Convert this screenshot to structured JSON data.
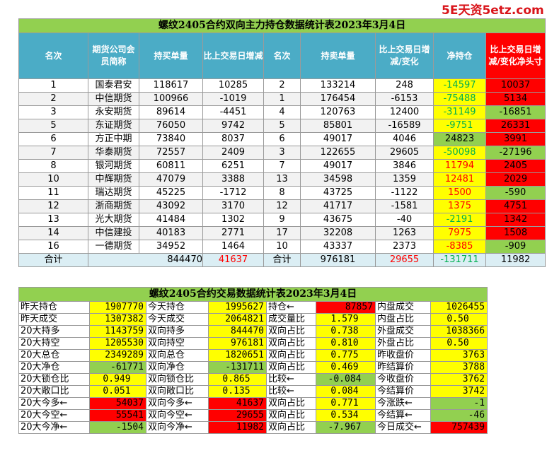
{
  "watermark": "5E天资5etz.com",
  "main_table": {
    "title": "螺纹2405合约双向主力持仓数据统计表2023年3月4日",
    "headers": [
      "名次",
      "期货公司会员简称",
      "持买单量",
      "比上交易日增减",
      "名次",
      "持卖单量",
      "比上交易日增减/变化",
      "净持仓",
      "比上交易日增减/变化净头寸"
    ],
    "rows": [
      {
        "rank": "1",
        "company": "国泰君安",
        "buy": "118617",
        "buy_chg": "10285",
        "rank2": "2",
        "sell": "133214",
        "sell_chg": "248",
        "net": "-14597",
        "net_chg": "10037",
        "net_color": "green",
        "chg_color": "red"
      },
      {
        "rank": "2",
        "company": "中信期货",
        "buy": "100966",
        "buy_chg": "-1019",
        "rank2": "1",
        "sell": "176454",
        "sell_chg": "-6153",
        "net": "-75488",
        "net_chg": "5134",
        "net_color": "green",
        "chg_color": "red"
      },
      {
        "rank": "3",
        "company": "永安期货",
        "buy": "89614",
        "buy_chg": "-4451",
        "rank2": "4",
        "sell": "120763",
        "sell_chg": "12400",
        "net": "-31149",
        "net_chg": "-16851",
        "net_color": "green",
        "chg_color": "green"
      },
      {
        "rank": "5",
        "company": "东证期货",
        "buy": "76050",
        "buy_chg": "9742",
        "rank2": "5",
        "sell": "85801",
        "sell_chg": "-16589",
        "net": "-9751",
        "net_chg": "26331",
        "net_color": "green",
        "chg_color": "red"
      },
      {
        "rank": "6",
        "company": "方正中期",
        "buy": "73840",
        "buy_chg": "8037",
        "rank2": "6",
        "sell": "49017",
        "sell_chg": "4046",
        "net": "24823",
        "net_color": "greenbg",
        "net_chg": "3991",
        "chg_color": "red"
      },
      {
        "rank": "7",
        "company": "华泰期货",
        "buy": "72557",
        "buy_chg": "2409",
        "rank2": "3",
        "sell": "122655",
        "sell_chg": "29605",
        "net": "-50098",
        "net_chg": "-27196",
        "net_color": "green",
        "chg_color": "green"
      },
      {
        "rank": "8",
        "company": "银河期货",
        "buy": "60811",
        "buy_chg": "6251",
        "rank2": "7",
        "sell": "49017",
        "sell_chg": "3846",
        "net": "11794",
        "net_chg": "2405",
        "net_color": "red",
        "chg_color": "red"
      },
      {
        "rank": "10",
        "company": "中辉期货",
        "buy": "47079",
        "buy_chg": "3388",
        "rank2": "13",
        "sell": "34598",
        "sell_chg": "1359",
        "net": "12481",
        "net_chg": "2029",
        "net_color": "red",
        "chg_color": "red"
      },
      {
        "rank": "11",
        "company": "瑞达期货",
        "buy": "45225",
        "buy_chg": "-1712",
        "rank2": "8",
        "sell": "43725",
        "sell_chg": "-1122",
        "net": "1500",
        "net_chg": "-590",
        "net_color": "red",
        "chg_color": "green"
      },
      {
        "rank": "12",
        "company": "浙商期货",
        "buy": "43092",
        "buy_chg": "3170",
        "rank2": "12",
        "sell": "41717",
        "sell_chg": "-1581",
        "net": "1375",
        "net_chg": "4751",
        "net_color": "red",
        "chg_color": "red"
      },
      {
        "rank": "13",
        "company": "光大期货",
        "buy": "41484",
        "buy_chg": "1302",
        "rank2": "9",
        "sell": "43675",
        "sell_chg": "-40",
        "net": "-2191",
        "net_chg": "1342",
        "net_color": "green",
        "chg_color": "red"
      },
      {
        "rank": "14",
        "company": "中信建投",
        "buy": "40183",
        "buy_chg": "2771",
        "rank2": "17",
        "sell": "32208",
        "sell_chg": "1263",
        "net": "7975",
        "net_chg": "1508",
        "net_color": "red",
        "chg_color": "red"
      },
      {
        "rank": "16",
        "company": "一德期货",
        "buy": "34952",
        "buy_chg": "1464",
        "rank2": "10",
        "sell": "43337",
        "sell_chg": "2373",
        "net": "-8385",
        "net_chg": "-909",
        "net_color": "red",
        "chg_color": "green"
      }
    ],
    "total": {
      "label": "合计",
      "buy": "844470",
      "buy_chg": "41637",
      "label2": "合计",
      "sell": "976181",
      "sell_chg": "29655",
      "net": "-131711",
      "net_chg": "11982"
    }
  },
  "stats_table": {
    "title": "螺纹2405合约交易数据统计表2023年3月4日",
    "rows": [
      [
        {
          "t": "昨天持仓"
        },
        {
          "t": "1907770",
          "bg": "y"
        },
        {
          "t": "今天持仓"
        },
        {
          "t": "1995627",
          "bg": "y"
        },
        {
          "t": "持仓←"
        },
        {
          "t": "87857",
          "bg": "r"
        },
        {
          "t": "内盘成交"
        },
        {
          "t": "1026455",
          "bg": "y"
        }
      ],
      [
        {
          "t": "昨天成交"
        },
        {
          "t": "1307382",
          "bg": "y"
        },
        {
          "t": "今天成交"
        },
        {
          "t": "2064821",
          "bg": "y"
        },
        {
          "t": "成交量比"
        },
        {
          "t": "1.579",
          "bg": "y",
          "c": 1
        },
        {
          "t": "内盘占比"
        },
        {
          "t": "0.50",
          "bg": "y",
          "c": 1
        }
      ],
      [
        {
          "t": "20大持多"
        },
        {
          "t": "1143759",
          "bg": "y"
        },
        {
          "t": "双向持多"
        },
        {
          "t": "844470",
          "bg": "y"
        },
        {
          "t": "双向占比"
        },
        {
          "t": "0.738",
          "bg": "y",
          "c": 1
        },
        {
          "t": "外盘成交"
        },
        {
          "t": "1038366",
          "bg": "y"
        }
      ],
      [
        {
          "t": "20大持空"
        },
        {
          "t": "1205530",
          "bg": "y"
        },
        {
          "t": "双向持空"
        },
        {
          "t": "976181",
          "bg": "y"
        },
        {
          "t": "双向占比"
        },
        {
          "t": "0.810",
          "bg": "y",
          "c": 1
        },
        {
          "t": "外盘占比"
        },
        {
          "t": "0.50",
          "bg": "y",
          "c": 1
        }
      ],
      [
        {
          "t": "20大总仓"
        },
        {
          "t": "2349289",
          "bg": "y"
        },
        {
          "t": "双向总仓"
        },
        {
          "t": "1820651",
          "bg": "y"
        },
        {
          "t": "双向占比"
        },
        {
          "t": "0.775",
          "bg": "y",
          "c": 1
        },
        {
          "t": "昨收盘价"
        },
        {
          "t": "3763",
          "bg": "y"
        }
      ],
      [
        {
          "t": "20大净仓"
        },
        {
          "t": "-61771",
          "bg": "g"
        },
        {
          "t": "双向净仓"
        },
        {
          "t": "-131711",
          "bg": "g"
        },
        {
          "t": "双向占比"
        },
        {
          "t": "0.469",
          "bg": "y",
          "c": 1
        },
        {
          "t": "昨结算价"
        },
        {
          "t": "3788",
          "bg": "y"
        }
      ],
      [
        {
          "t": "20大锁仓比"
        },
        {
          "t": "0.949",
          "bg": "y",
          "c": 1
        },
        {
          "t": "双向锁仓比"
        },
        {
          "t": "0.865",
          "bg": "y",
          "c": 1
        },
        {
          "t": "比较←"
        },
        {
          "t": "-0.084",
          "bg": "g",
          "c": 1
        },
        {
          "t": "今收盘价"
        },
        {
          "t": "3762",
          "bg": "y"
        }
      ],
      [
        {
          "t": "20大敞口比"
        },
        {
          "t": "0.051",
          "bg": "y",
          "c": 1
        },
        {
          "t": "双向敞口比"
        },
        {
          "t": "0.135",
          "bg": "y",
          "c": 1
        },
        {
          "t": "比较←"
        },
        {
          "t": "0.084",
          "bg": "y",
          "c": 1
        },
        {
          "t": "今结算价"
        },
        {
          "t": "3742",
          "bg": "y"
        }
      ],
      [
        {
          "t": "20大今多←"
        },
        {
          "t": "54037",
          "bg": "r"
        },
        {
          "t": "双向今多←"
        },
        {
          "t": "41637",
          "bg": "r"
        },
        {
          "t": "双向占比"
        },
        {
          "t": "0.771",
          "bg": "y",
          "c": 1
        },
        {
          "t": "今涨跌←"
        },
        {
          "t": "-1",
          "bg": "g"
        }
      ],
      [
        {
          "t": "20大今空←"
        },
        {
          "t": "55541",
          "bg": "r"
        },
        {
          "t": "双向今空←"
        },
        {
          "t": "29655",
          "bg": "r"
        },
        {
          "t": "双向占比"
        },
        {
          "t": "0.534",
          "bg": "y",
          "c": 1
        },
        {
          "t": "今结算←"
        },
        {
          "t": "-46",
          "bg": "g"
        }
      ],
      [
        {
          "t": "20大今净←"
        },
        {
          "t": "-1504",
          "bg": "g"
        },
        {
          "t": "双向今净←"
        },
        {
          "t": "11982",
          "bg": "r"
        },
        {
          "t": "双向占比"
        },
        {
          "t": "-7.967",
          "bg": "g",
          "c": 1
        },
        {
          "t": "今日成交←"
        },
        {
          "t": "757439",
          "bg": "r"
        }
      ]
    ]
  },
  "colors": {
    "title_green": "#92d050",
    "header_blue": "#4bacc6",
    "yellow": "#ffff00",
    "red": "#ff0000",
    "green_text": "#00b050"
  }
}
